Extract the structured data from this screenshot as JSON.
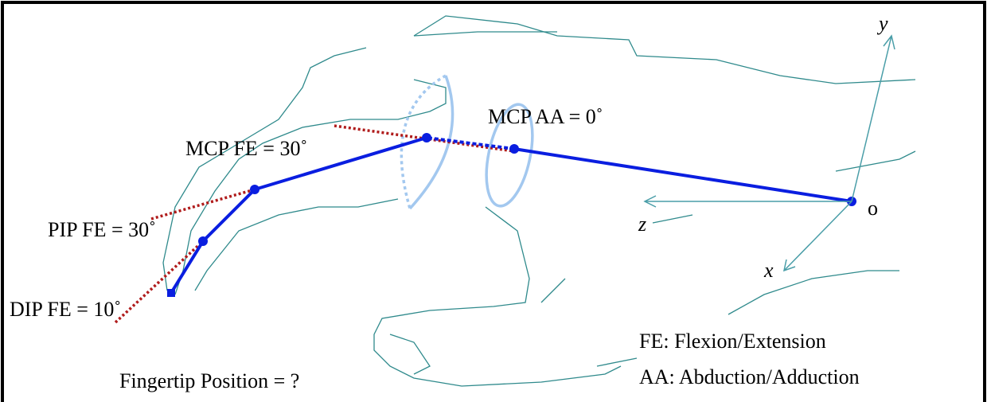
{
  "axes": {
    "y": "y",
    "z": "z",
    "x": "x",
    "origin": "o"
  },
  "joints": {
    "mcp_aa": "MCP AA = 0˚",
    "mcp_fe": "MCP FE = 30˚",
    "pip_fe": "PIP FE = 30˚",
    "dip_fe": "DIP FE = 10˚"
  },
  "question": "Fingertip Position = ?",
  "legend": [
    "FE: Flexion/Extension",
    "AA: Abduction/Adduction"
  ]
}
